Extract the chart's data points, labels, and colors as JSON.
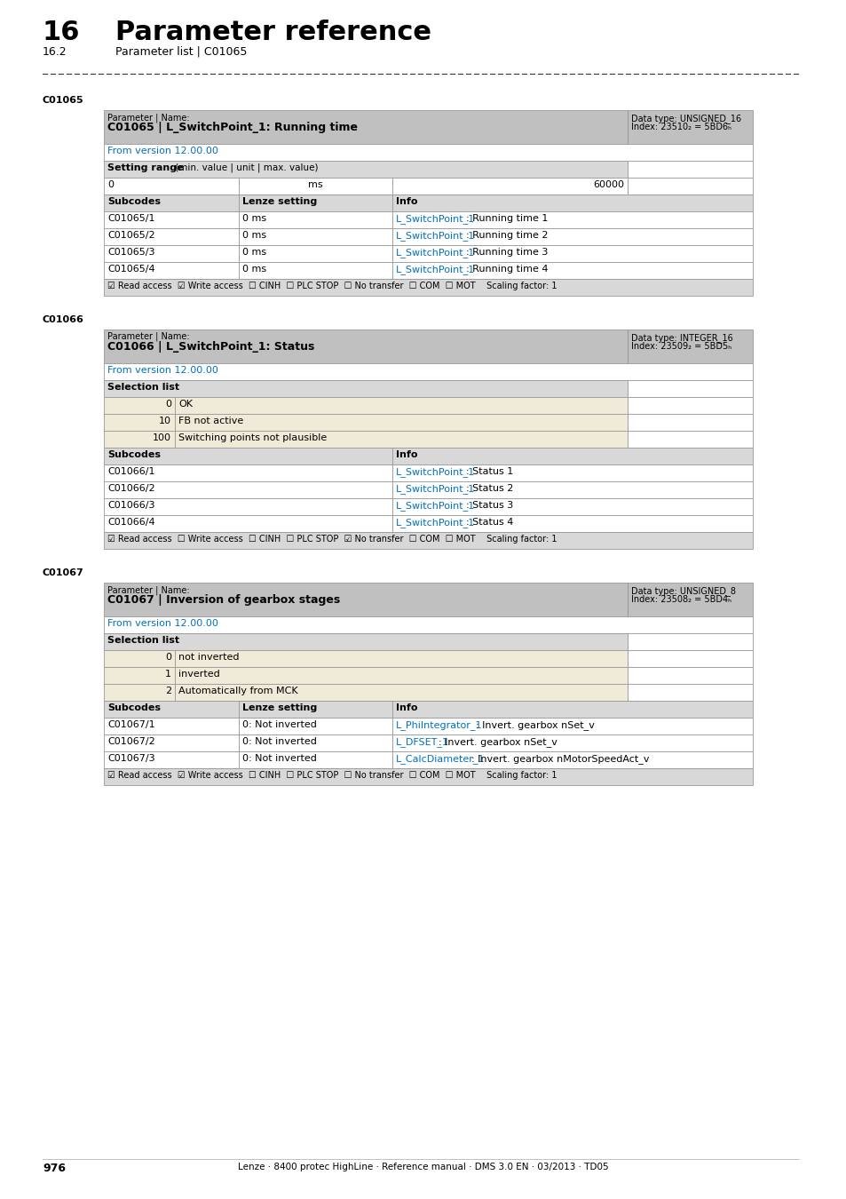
{
  "page_title_num": "16",
  "page_title": "Parameter reference",
  "page_subtitle_num": "16.2",
  "page_subtitle": "Parameter list | C01065",
  "page_num": "976",
  "footer_text": "Lenze · 8400 protec HighLine · Reference manual · DMS 3.0 EN · 03/2013 · TD05",
  "bg_color": "#ffffff",
  "header_bg": "#c0c0c0",
  "subheader_bg": "#d8d8d8",
  "selection_bg": "#f0ead8",
  "row_bg_white": "#ffffff",
  "blue_text": "#0070c0",
  "C01065": {
    "section_label": "C01065",
    "param_label": "Parameter | Name:",
    "param_name_bold": "C01065 | L_SwitchPoint_1: Running time",
    "data_type_label": "Data type: UNSIGNED_16",
    "index_label": "Index: 23510₂ = 5BD6ₕ",
    "version": "From version 12.00.00",
    "setting_range_bold": "Setting range",
    "setting_range_normal": " (min. value | unit | max. value)",
    "setting_min": "0",
    "setting_unit": "ms",
    "setting_max": "60000",
    "col_headers": [
      "Subcodes",
      "Lenze setting",
      "Info"
    ],
    "rows": [
      [
        "C01065/1",
        "0 ms",
        "L_SwitchPoint_1",
        ": Running time 1"
      ],
      [
        "C01065/2",
        "0 ms",
        "L_SwitchPoint_1",
        ": Running time 2"
      ],
      [
        "C01065/3",
        "0 ms",
        "L_SwitchPoint_1",
        ": Running time 3"
      ],
      [
        "C01065/4",
        "0 ms",
        "L_SwitchPoint_1",
        ": Running time 4"
      ]
    ],
    "footer": "☑ Read access  ☑ Write access  ☐ CINH  ☐ PLC STOP  ☐ No transfer  ☐ COM  ☐ MOT    Scaling factor: 1"
  },
  "C01066": {
    "section_label": "C01066",
    "param_label": "Parameter | Name:",
    "param_name_bold": "C01066 | L_SwitchPoint_1: Status",
    "data_type_label": "Data type: INTEGER_16",
    "index_label": "Index: 23509₂ = 5BD5ₕ",
    "version": "From version 12.00.00",
    "selection_label": "Selection list",
    "selection_rows": [
      [
        "0",
        "OK"
      ],
      [
        "10",
        "FB not active"
      ],
      [
        "100",
        "Switching points not plausible"
      ]
    ],
    "col_headers": [
      "Subcodes",
      "Info"
    ],
    "rows": [
      [
        "C01066/1",
        "L_SwitchPoint_1",
        ": Status 1"
      ],
      [
        "C01066/2",
        "L_SwitchPoint_1",
        ": Status 2"
      ],
      [
        "C01066/3",
        "L_SwitchPoint_1",
        ": Status 3"
      ],
      [
        "C01066/4",
        "L_SwitchPoint_1",
        ": Status 4"
      ]
    ],
    "footer": "☑ Read access  ☐ Write access  ☐ CINH  ☐ PLC STOP  ☑ No transfer  ☐ COM  ☐ MOT    Scaling factor: 1"
  },
  "C01067": {
    "section_label": "C01067",
    "param_label": "Parameter | Name:",
    "param_name_bold": "C01067 | Inversion of gearbox stages",
    "data_type_label": "Data type: UNSIGNED_8",
    "index_label": "Index: 23508₂ = 5BD4ₕ",
    "version": "From version 12.00.00",
    "selection_label": "Selection list",
    "selection_rows": [
      [
        "0",
        "not inverted"
      ],
      [
        "1",
        "inverted"
      ],
      [
        "2",
        "Automatically from MCK"
      ]
    ],
    "col_headers": [
      "Subcodes",
      "Lenze setting",
      "Info"
    ],
    "rows": [
      [
        "C01067/1",
        "0: Not inverted",
        "L_PhiIntegrator_1",
        ": Invert. gearbox nSet_v"
      ],
      [
        "C01067/2",
        "0: Not inverted",
        "L_DFSET_1",
        ": Invert. gearbox nSet_v"
      ],
      [
        "C01067/3",
        "0: Not inverted",
        "L_CalcDiameter_1",
        ": Invert. gearbox nMotorSpeedAct_v"
      ]
    ],
    "footer": "☑ Read access  ☑ Write access  ☐ CINH  ☐ PLC STOP  ☐ No transfer  ☐ COM  ☐ MOT    Scaling factor: 1"
  }
}
